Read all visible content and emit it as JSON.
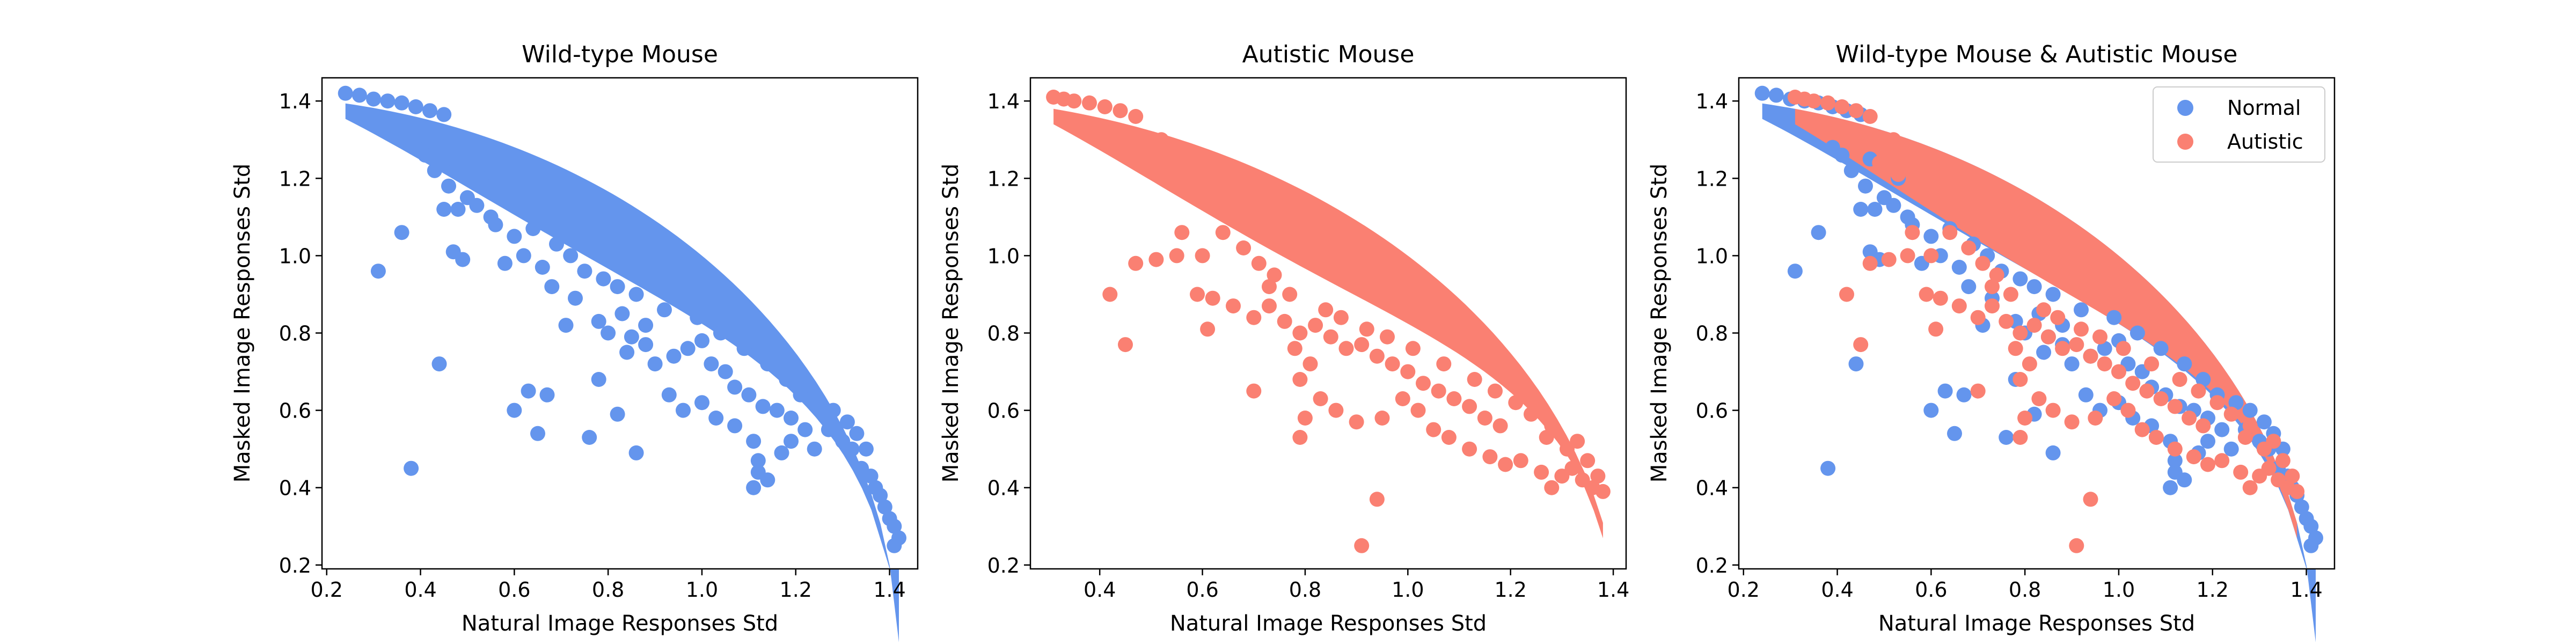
{
  "chart_data": [
    {
      "type": "scatter",
      "title": "Wild-type Mouse",
      "xlabel": "Natural Image Responses Std",
      "ylabel": "Masked Image Responses Std",
      "xlim": [
        0.19,
        1.46
      ],
      "ylim": [
        0.19,
        1.46
      ],
      "xticks": [
        0.2,
        0.4,
        0.6,
        0.8,
        1.0,
        1.2,
        1.4
      ],
      "yticks": [
        0.2,
        0.4,
        0.6,
        0.8,
        1.0,
        1.2,
        1.4
      ],
      "grid": false,
      "legend": null,
      "series": [
        {
          "color": "#6495ED",
          "points": [
            [
              0.24,
              1.42
            ],
            [
              0.27,
              1.415
            ],
            [
              0.3,
              1.405
            ],
            [
              0.33,
              1.4
            ],
            [
              0.36,
              1.395
            ],
            [
              0.39,
              1.385
            ],
            [
              0.42,
              1.375
            ],
            [
              0.45,
              1.365
            ],
            [
              0.39,
              1.28
            ],
            [
              0.41,
              1.26
            ],
            [
              0.43,
              1.22
            ],
            [
              0.46,
              1.18
            ],
            [
              0.45,
              1.12
            ],
            [
              0.48,
              1.12
            ],
            [
              0.52,
              1.13
            ],
            [
              0.55,
              1.1
            ],
            [
              0.5,
              1.15
            ],
            [
              0.47,
              1.25
            ],
            [
              0.53,
              1.2
            ],
            [
              0.36,
              1.06
            ],
            [
              0.31,
              0.96
            ],
            [
              0.47,
              1.01
            ],
            [
              0.49,
              0.99
            ],
            [
              0.56,
              1.08
            ],
            [
              0.6,
              1.05
            ],
            [
              0.64,
              1.07
            ],
            [
              0.69,
              1.03
            ],
            [
              0.72,
              1.0
            ],
            [
              0.75,
              0.96
            ],
            [
              0.79,
              0.94
            ],
            [
              0.82,
              0.92
            ],
            [
              0.86,
              0.9
            ],
            [
              0.73,
              0.89
            ],
            [
              0.78,
              0.83
            ],
            [
              0.83,
              0.85
            ],
            [
              0.85,
              0.79
            ],
            [
              0.88,
              0.77
            ],
            [
              0.9,
              0.72
            ],
            [
              0.94,
              0.74
            ],
            [
              0.97,
              0.76
            ],
            [
              1.0,
              0.78
            ],
            [
              1.02,
              0.72
            ],
            [
              1.05,
              0.7
            ],
            [
              1.07,
              0.66
            ],
            [
              1.1,
              0.64
            ],
            [
              1.13,
              0.61
            ],
            [
              1.16,
              0.6
            ],
            [
              1.19,
              0.58
            ],
            [
              1.22,
              0.55
            ],
            [
              1.24,
              0.5
            ],
            [
              0.78,
              0.68
            ],
            [
              0.82,
              0.59
            ],
            [
              0.76,
              0.53
            ],
            [
              0.86,
              0.49
            ],
            [
              0.93,
              0.64
            ],
            [
              0.96,
              0.6
            ],
            [
              1.0,
              0.62
            ],
            [
              1.03,
              0.58
            ],
            [
              1.07,
              0.56
            ],
            [
              1.11,
              0.52
            ],
            [
              1.12,
              0.47
            ],
            [
              1.12,
              0.44
            ],
            [
              1.11,
              0.4
            ],
            [
              1.14,
              0.42
            ],
            [
              1.17,
              0.49
            ],
            [
              1.19,
              0.52
            ],
            [
              1.27,
              0.55
            ],
            [
              1.3,
              0.52
            ],
            [
              1.32,
              0.5
            ],
            [
              1.34,
              0.45
            ],
            [
              1.36,
              0.43
            ],
            [
              1.37,
              0.4
            ],
            [
              1.38,
              0.38
            ],
            [
              1.39,
              0.35
            ],
            [
              1.4,
              0.32
            ],
            [
              1.41,
              0.3
            ],
            [
              1.42,
              0.27
            ],
            [
              1.41,
              0.25
            ],
            [
              0.63,
              0.65
            ],
            [
              0.6,
              0.6
            ],
            [
              0.65,
              0.54
            ],
            [
              0.67,
              0.64
            ],
            [
              0.44,
              0.72
            ],
            [
              0.38,
              0.45
            ],
            [
              0.58,
              0.98
            ],
            [
              0.62,
              1.0
            ],
            [
              0.66,
              0.97
            ],
            [
              0.68,
              0.92
            ],
            [
              0.71,
              0.82
            ],
            [
              0.8,
              0.8
            ],
            [
              0.84,
              0.75
            ],
            [
              0.88,
              0.82
            ],
            [
              0.92,
              0.86
            ],
            [
              0.99,
              0.84
            ],
            [
              1.04,
              0.8
            ],
            [
              1.09,
              0.76
            ],
            [
              1.14,
              0.72
            ],
            [
              1.18,
              0.68
            ],
            [
              1.21,
              0.64
            ],
            [
              1.25,
              0.62
            ],
            [
              1.28,
              0.6
            ],
            [
              1.31,
              0.57
            ],
            [
              1.33,
              0.54
            ],
            [
              1.35,
              0.5
            ]
          ]
        }
      ]
    },
    {
      "type": "scatter",
      "title": "Autistic Mouse",
      "xlabel": "Natural Image Responses Std",
      "ylabel": "Masked Image Responses Std",
      "xlim": [
        0.265,
        1.425
      ],
      "ylim": [
        0.19,
        1.46
      ],
      "xticks": [
        0.4,
        0.6,
        0.8,
        1.0,
        1.2,
        1.4
      ],
      "yticks": [
        0.2,
        0.4,
        0.6,
        0.8,
        1.0,
        1.2,
        1.4
      ],
      "grid": false,
      "legend": null,
      "series": [
        {
          "color": "#FA8072",
          "points": [
            [
              0.31,
              1.41
            ],
            [
              0.33,
              1.405
            ],
            [
              0.35,
              1.4
            ],
            [
              0.38,
              1.395
            ],
            [
              0.41,
              1.385
            ],
            [
              0.44,
              1.375
            ],
            [
              0.47,
              1.36
            ],
            [
              0.52,
              1.3
            ],
            [
              0.55,
              1.28
            ],
            [
              0.49,
              1.24
            ],
            [
              0.53,
              1.21
            ],
            [
              0.57,
              1.2
            ],
            [
              0.59,
              1.16
            ],
            [
              0.62,
              1.13
            ],
            [
              0.66,
              1.11
            ],
            [
              0.69,
              1.14
            ],
            [
              0.73,
              1.12
            ],
            [
              0.56,
              1.06
            ],
            [
              0.6,
              1.0
            ],
            [
              0.64,
              1.06
            ],
            [
              0.68,
              1.02
            ],
            [
              0.71,
              0.98
            ],
            [
              0.74,
              0.95
            ],
            [
              0.47,
              0.98
            ],
            [
              0.51,
              0.99
            ],
            [
              0.55,
              1.0
            ],
            [
              0.42,
              0.9
            ],
            [
              0.45,
              0.77
            ],
            [
              0.59,
              0.9
            ],
            [
              0.62,
              0.89
            ],
            [
              0.61,
              0.81
            ],
            [
              0.66,
              0.87
            ],
            [
              0.7,
              0.84
            ],
            [
              0.73,
              0.87
            ],
            [
              0.76,
              0.83
            ],
            [
              0.79,
              0.8
            ],
            [
              0.82,
              0.82
            ],
            [
              0.85,
              0.79
            ],
            [
              0.88,
              0.76
            ],
            [
              0.91,
              0.77
            ],
            [
              0.94,
              0.74
            ],
            [
              0.97,
              0.72
            ],
            [
              1.0,
              0.7
            ],
            [
              1.03,
              0.67
            ],
            [
              1.06,
              0.65
            ],
            [
              1.09,
              0.63
            ],
            [
              1.12,
              0.61
            ],
            [
              1.15,
              0.58
            ],
            [
              1.18,
              0.56
            ],
            [
              0.78,
              0.76
            ],
            [
              0.81,
              0.72
            ],
            [
              0.79,
              0.68
            ],
            [
              0.83,
              0.63
            ],
            [
              0.8,
              0.58
            ],
            [
              0.79,
              0.53
            ],
            [
              0.86,
              0.6
            ],
            [
              0.9,
              0.57
            ],
            [
              0.95,
              0.58
            ],
            [
              0.99,
              0.63
            ],
            [
              1.02,
              0.6
            ],
            [
              1.05,
              0.55
            ],
            [
              1.08,
              0.53
            ],
            [
              1.12,
              0.5
            ],
            [
              1.16,
              0.48
            ],
            [
              1.19,
              0.46
            ],
            [
              1.22,
              0.47
            ],
            [
              1.26,
              0.44
            ],
            [
              1.28,
              0.4
            ],
            [
              1.3,
              0.43
            ],
            [
              1.32,
              0.45
            ],
            [
              1.34,
              0.42
            ],
            [
              1.36,
              0.4
            ],
            [
              1.38,
              0.39
            ],
            [
              1.37,
              0.43
            ],
            [
              1.35,
              0.47
            ],
            [
              1.31,
              0.5
            ],
            [
              1.27,
              0.53
            ],
            [
              0.7,
              0.65
            ],
            [
              0.91,
              0.25
            ],
            [
              0.94,
              0.37
            ],
            [
              0.73,
              0.92
            ],
            [
              0.77,
              0.9
            ],
            [
              0.84,
              0.86
            ],
            [
              0.87,
              0.84
            ],
            [
              0.92,
              0.81
            ],
            [
              0.96,
              0.79
            ],
            [
              1.01,
              0.76
            ],
            [
              1.07,
              0.72
            ],
            [
              1.13,
              0.68
            ],
            [
              1.17,
              0.65
            ],
            [
              1.21,
              0.62
            ],
            [
              1.24,
              0.59
            ],
            [
              1.28,
              0.56
            ],
            [
              1.33,
              0.52
            ]
          ]
        }
      ]
    },
    {
      "type": "scatter",
      "title": "Wild-type Mouse & Autistic Mouse",
      "xlabel": "Natural Image Responses Std",
      "ylabel": "Masked Image Responses Std",
      "xlim": [
        0.19,
        1.46
      ],
      "ylim": [
        0.19,
        1.46
      ],
      "xticks": [
        0.2,
        0.4,
        0.6,
        0.8,
        1.0,
        1.2,
        1.4
      ],
      "yticks": [
        0.2,
        0.4,
        0.6,
        0.8,
        1.0,
        1.2,
        1.4
      ],
      "grid": false,
      "legend": "top-right",
      "series": [
        {
          "name": "Normal",
          "color": "#6495ED",
          "points_from": 0
        },
        {
          "name": "Autistic",
          "color": "#FA8072",
          "points_from": 1
        }
      ]
    }
  ]
}
